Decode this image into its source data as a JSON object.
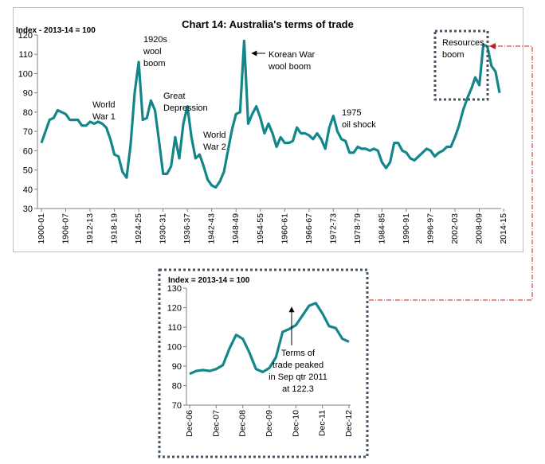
{
  "colors": {
    "series": "#13868a",
    "dashed_box": "#4a5560",
    "connector": "#cc1a1a",
    "text": "#000000",
    "axis": "#808080",
    "panel_border": "#bfbfbf"
  },
  "chart_data": [
    {
      "type": "line",
      "title": "Chart 14: Australia's terms of trade",
      "ylabel": "Index - 2013-14 = 100",
      "ylim": [
        30,
        120
      ],
      "yticks": [
        30,
        40,
        50,
        60,
        70,
        80,
        90,
        100,
        110,
        120
      ],
      "grid": false,
      "xtick_labels": [
        "1900-01",
        "1906-07",
        "1912-13",
        "1918-19",
        "1924-25",
        "1930-31",
        "1936-37",
        "1942-43",
        "1948-49",
        "1954-55",
        "1960-61",
        "1966-67",
        "1972-73",
        "1978-79",
        "1984-85",
        "1990-91",
        "1996-97",
        "2002-03",
        "2008-09",
        "2014-15"
      ],
      "x_start": 1900,
      "series": [
        {
          "name": "Terms of trade",
          "values": [
            64,
            70,
            76,
            77,
            81,
            80,
            79,
            76,
            76,
            76,
            73,
            73,
            75,
            74,
            75,
            74,
            72,
            66,
            58,
            57,
            49,
            46,
            63,
            90,
            106,
            76,
            77,
            86,
            81,
            65,
            48,
            48,
            52,
            67,
            56,
            74,
            83,
            67,
            56,
            58,
            52,
            45,
            42,
            41,
            44,
            49,
            60,
            71,
            79,
            80,
            117,
            74,
            79,
            83,
            77,
            69,
            74,
            69,
            62,
            67,
            64,
            64,
            65,
            72,
            69,
            69,
            68,
            66,
            69,
            66,
            61,
            72,
            78,
            70,
            66,
            65,
            59,
            59,
            62,
            61,
            61,
            60,
            61,
            60,
            54,
            51,
            54,
            64,
            64,
            60,
            59,
            56,
            55,
            57,
            59,
            61,
            60,
            57,
            59,
            60,
            62,
            62,
            67,
            73,
            81,
            87,
            92,
            98,
            94,
            115,
            114,
            104,
            101,
            90
          ]
        }
      ],
      "annotations": [
        {
          "text_lines": [
            "World",
            "War 1"
          ]
        },
        {
          "text_lines": [
            "1920s",
            "wool",
            "boom"
          ]
        },
        {
          "text_lines": [
            "Great",
            "Depression"
          ]
        },
        {
          "text_lines": [
            "World",
            "War 2"
          ]
        },
        {
          "text_lines": [
            "Korean War",
            "wool boom"
          ]
        },
        {
          "text_lines": [
            "1975",
            "oil shock"
          ]
        },
        {
          "text_lines": [
            "Resources",
            "boom"
          ]
        }
      ]
    },
    {
      "type": "line",
      "title": "",
      "ylabel": "Index = 2013-14 = 100",
      "ylim": [
        70,
        130
      ],
      "yticks": [
        70,
        80,
        90,
        100,
        110,
        120,
        130
      ],
      "grid": false,
      "xtick_labels": [
        "Dec-06",
        "Dec-07",
        "Dec-08",
        "Dec-09",
        "Dec-10",
        "Dec-11",
        "Dec-12"
      ],
      "series": [
        {
          "name": "Terms of trade (quarterly)",
          "values": [
            86,
            87.5,
            88,
            87.5,
            88.5,
            90.5,
            99,
            106,
            104,
            97,
            88.5,
            87,
            89,
            94.5,
            107.5,
            109,
            111,
            116,
            121,
            122.3,
            117,
            110.5,
            109.5,
            104,
            102.5
          ]
        }
      ],
      "annotations": [
        {
          "text_lines": [
            "Terms of",
            "trade peaked",
            "in Sep qtr 2011",
            "at 122.3"
          ]
        }
      ]
    }
  ]
}
